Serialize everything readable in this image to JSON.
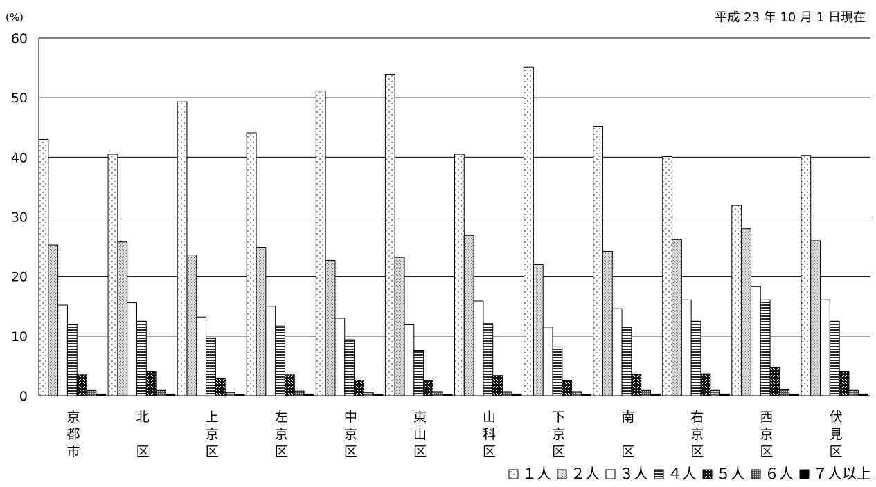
{
  "chart_data": {
    "type": "bar",
    "unit_label": "(%)",
    "date_note": "平成 23 年 10 月 1 日現在",
    "ylim": [
      0,
      60
    ],
    "yticks": [
      0,
      10,
      20,
      30,
      40,
      50,
      60
    ],
    "grid": true,
    "legend_position": "bottom-right",
    "categories": [
      "京都市",
      "北区",
      "上京区",
      "左京区",
      "中京区",
      "東山区",
      "山科区",
      "下京区",
      "南区",
      "右京区",
      "西京区",
      "伏見区"
    ],
    "category_label_lines": [
      [
        "京",
        "都",
        "市"
      ],
      [
        "北",
        "",
        "区"
      ],
      [
        "上",
        "京",
        "区"
      ],
      [
        "左",
        "京",
        "区"
      ],
      [
        "中",
        "京",
        "区"
      ],
      [
        "東",
        "山",
        "区"
      ],
      [
        "山",
        "科",
        "区"
      ],
      [
        "下",
        "京",
        "区"
      ],
      [
        "南",
        "",
        "区"
      ],
      [
        "右",
        "京",
        "区"
      ],
      [
        "西",
        "京",
        "区"
      ],
      [
        "伏",
        "見",
        "区"
      ]
    ],
    "series": [
      {
        "name": "１人",
        "pattern": "dots",
        "values": [
          43.0,
          40.5,
          49.3,
          44.1,
          51.1,
          53.9,
          40.5,
          55.1,
          45.2,
          40.1,
          31.9,
          40.3
        ]
      },
      {
        "name": "２人",
        "pattern": "dense-dots",
        "values": [
          25.3,
          25.8,
          23.6,
          24.9,
          22.7,
          23.2,
          26.9,
          22.0,
          24.2,
          26.2,
          28.0,
          26.0
        ]
      },
      {
        "name": "３人",
        "pattern": "white",
        "values": [
          15.2,
          15.6,
          13.2,
          15.0,
          13.0,
          11.9,
          15.9,
          11.5,
          14.6,
          16.1,
          18.3,
          16.1
        ]
      },
      {
        "name": "４人",
        "pattern": "hstripes",
        "values": [
          11.9,
          12.5,
          9.7,
          11.7,
          9.4,
          7.6,
          12.1,
          8.2,
          11.5,
          12.5,
          16.1,
          12.5
        ]
      },
      {
        "name": "５人",
        "pattern": "checker",
        "values": [
          3.5,
          4.0,
          2.9,
          3.5,
          2.6,
          2.5,
          3.4,
          2.5,
          3.6,
          3.7,
          4.7,
          4.0
        ]
      },
      {
        "name": "６人",
        "pattern": "grid",
        "values": [
          0.9,
          0.9,
          0.6,
          0.8,
          0.6,
          0.7,
          0.7,
          0.7,
          0.9,
          0.9,
          1.0,
          0.9
        ]
      },
      {
        "name": "７人以上",
        "pattern": "solid",
        "values": [
          0.3,
          0.3,
          0.2,
          0.3,
          0.2,
          0.2,
          0.3,
          0.2,
          0.3,
          0.3,
          0.3,
          0.3
        ]
      }
    ]
  }
}
